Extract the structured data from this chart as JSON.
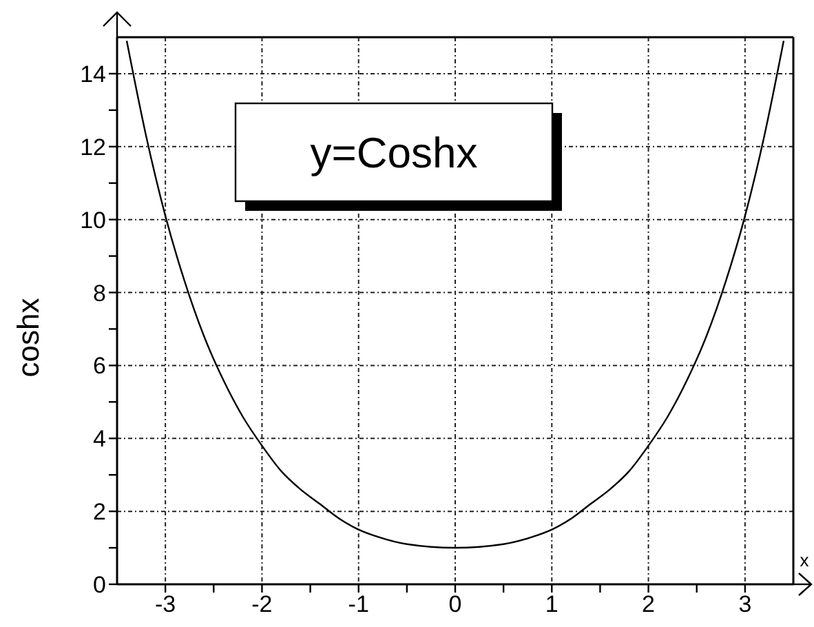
{
  "chart_data": {
    "type": "line",
    "xlabel": "x",
    "ylabel": "coshx",
    "annotations": [
      "y=Coshx"
    ],
    "x": [
      -3.4,
      -3.2,
      -3.0,
      -2.8,
      -2.6,
      -2.4,
      -2.2,
      -2.0,
      -1.8,
      -1.6,
      -1.4,
      -1.2,
      -1.0,
      -0.8,
      -0.5,
      0,
      0.5,
      0.8,
      1.0,
      1.2,
      1.4,
      1.6,
      1.8,
      2.0,
      2.2,
      2.4,
      2.6,
      2.8,
      3.0,
      3.2,
      3.4
    ],
    "values": [
      14.9,
      12.3,
      10.1,
      8.3,
      6.8,
      5.6,
      4.6,
      3.8,
      3.1,
      2.6,
      2.2,
      1.8,
      1.5,
      1.3,
      1.1,
      1.0,
      1.1,
      1.3,
      1.5,
      1.8,
      2.2,
      2.6,
      3.1,
      3.8,
      4.6,
      5.6,
      6.8,
      8.3,
      10.1,
      12.3,
      14.9
    ],
    "color": "#000000",
    "marker": "none",
    "line_style": "solid",
    "grid": true,
    "xlim": [
      -3.5,
      3.5
    ],
    "ylim": [
      0,
      15
    ],
    "xticks": [
      -3,
      {
        "value": -2.5,
        "label": null
      },
      -2,
      {
        "value": -1.5,
        "label": null
      },
      -1,
      {
        "value": -0.5,
        "label": null
      },
      0,
      {
        "value": 0.5,
        "label": null
      },
      1,
      {
        "value": 1.5,
        "label": null
      },
      2,
      {
        "value": 2.5,
        "label": null
      },
      3
    ],
    "yticks": [
      0,
      {
        "value": 1,
        "label": null
      },
      2,
      {
        "value": 3,
        "label": null
      },
      4,
      {
        "value": 5,
        "label": null
      },
      6,
      {
        "value": 7,
        "label": null
      },
      8,
      {
        "value": 9,
        "label": null
      },
      10,
      {
        "value": 11,
        "label": null
      },
      12,
      {
        "value": 13,
        "label": null
      },
      14
    ]
  }
}
